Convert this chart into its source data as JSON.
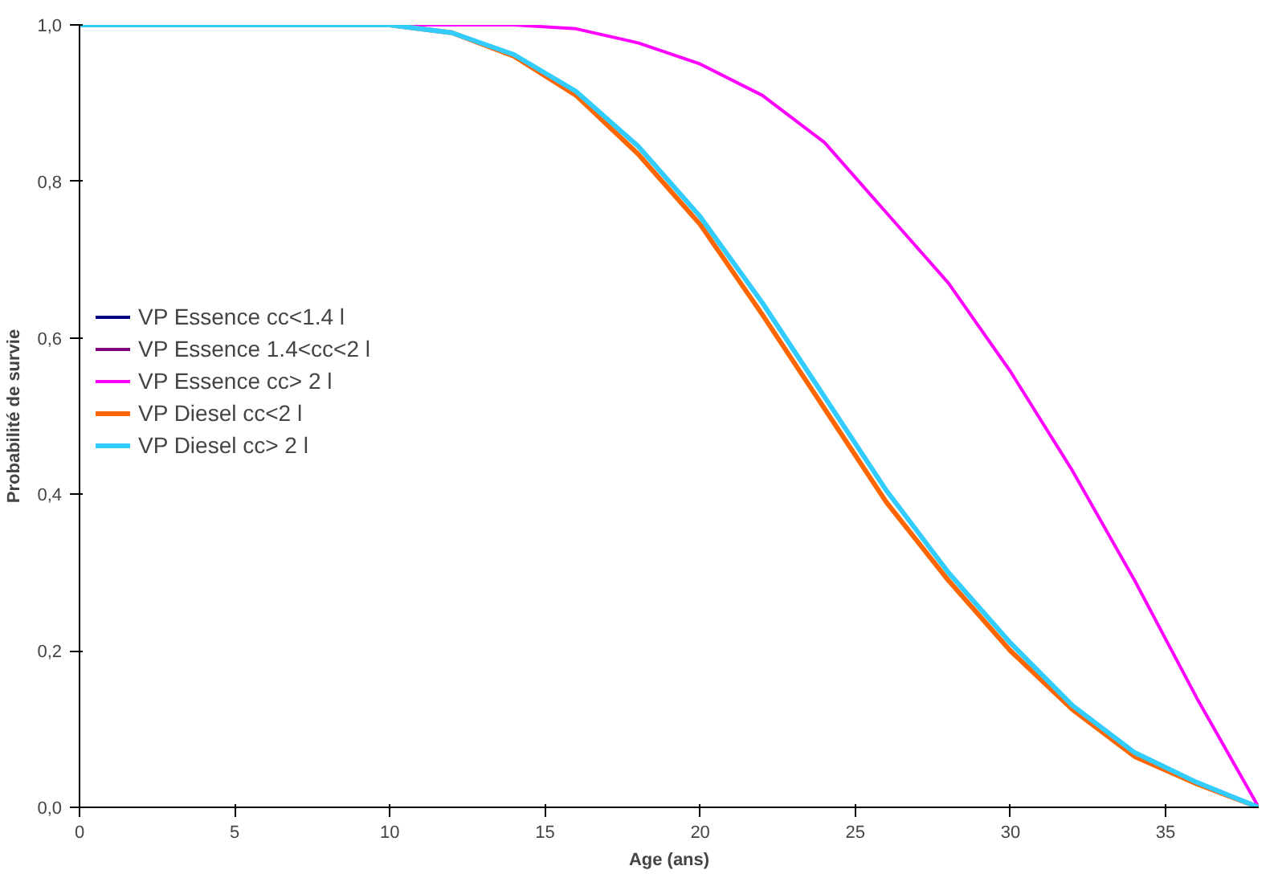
{
  "chart_data": {
    "type": "line",
    "xlabel": "Age (ans)",
    "ylabel": "Probabilité de survie",
    "x": [
      0,
      10,
      12,
      14,
      16,
      18,
      20,
      22,
      24,
      26,
      28,
      30,
      32,
      34,
      36,
      38
    ],
    "xlim": [
      0,
      38
    ],
    "xticks": [
      0,
      5,
      10,
      15,
      20,
      25,
      30,
      35
    ],
    "ylim": [
      0,
      1
    ],
    "yticks": [
      {
        "value": 0,
        "label": "0,0"
      },
      {
        "value": 0.2,
        "label": "0,2"
      },
      {
        "value": 0.4,
        "label": "0,4"
      },
      {
        "value": 0.6,
        "label": "0,6"
      },
      {
        "value": 0.8,
        "label": "0,8"
      },
      {
        "value": 1,
        "label": "1,0"
      }
    ],
    "grid": false,
    "legend": "left",
    "marker": "none",
    "line_style": "solid",
    "series": [
      {
        "name": "VP Essence cc<1.4 l",
        "color": "#000080",
        "values": [
          null,
          null,
          null,
          null,
          null,
          null,
          null,
          null,
          null,
          null,
          null,
          null,
          null,
          null,
          null,
          null
        ]
      },
      {
        "name": "VP Essence 1.4<cc<2 l",
        "color": "#800080",
        "values": [
          null,
          null,
          null,
          null,
          null,
          null,
          null,
          null,
          null,
          null,
          null,
          null,
          null,
          null,
          null,
          null
        ]
      },
      {
        "name": "VP Essence cc> 2 l",
        "color": "#ff00ff",
        "values": [
          1,
          1,
          1,
          1,
          0.995,
          0.977,
          0.95,
          0.91,
          0.85,
          0.76,
          0.67,
          0.557,
          0.43,
          0.29,
          0.14,
          0
        ]
      },
      {
        "name": "VP Diesel cc<2 l",
        "color": "#ff6600",
        "values": [
          1,
          1,
          0.99,
          0.96,
          0.91,
          0.835,
          0.745,
          0.63,
          0.51,
          0.39,
          0.29,
          0.2,
          0.125,
          0.065,
          0.03,
          0
        ]
      },
      {
        "name": "VP Diesel cc> 2 l",
        "color": "#33ccff",
        "values": [
          1,
          1,
          0.99,
          0.962,
          0.915,
          0.845,
          0.755,
          0.645,
          0.525,
          0.405,
          0.3,
          0.21,
          0.13,
          0.07,
          0.032,
          0
        ]
      }
    ]
  }
}
